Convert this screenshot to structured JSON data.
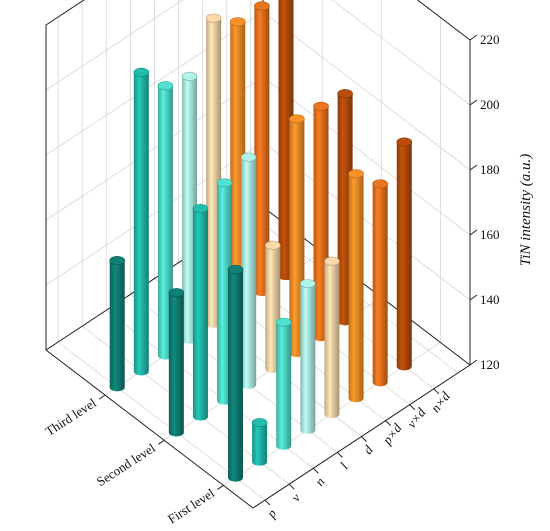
{
  "chart_data": {
    "type": "bar3d",
    "ylabel": "TiN intensity (a.u.)",
    "ylim": [
      120,
      220
    ],
    "yticks": [
      "120",
      "140",
      "160",
      "180",
      "200",
      "220"
    ],
    "levels": [
      "First level",
      "Second level",
      "Third level"
    ],
    "factors": [
      "p",
      "v",
      "n",
      "l",
      "d",
      "p×d",
      "v×d",
      "n×d"
    ],
    "grid": true,
    "colors": {
      "p": "#0f7b70",
      "v": "#1fb5a6",
      "n": "#4dd6c6",
      "l": "#a9e8dc",
      "d": "#f2cfa2",
      "p×d": "#f08a26",
      "v×d": "#e0701c",
      "n×d": "#b04a0a"
    },
    "series": [
      {
        "level": "First level",
        "values": [
          184,
          132,
          158,
          165,
          167,
          189,
          181,
          189
        ]
      },
      {
        "level": "Second level",
        "values": [
          163,
          184,
          187,
          190,
          158,
          192,
          191,
          190
        ]
      },
      {
        "level": "Third level",
        "values": [
          159,
          212,
          203,
          201,
          214,
          208,
          208,
          219
        ]
      }
    ]
  }
}
